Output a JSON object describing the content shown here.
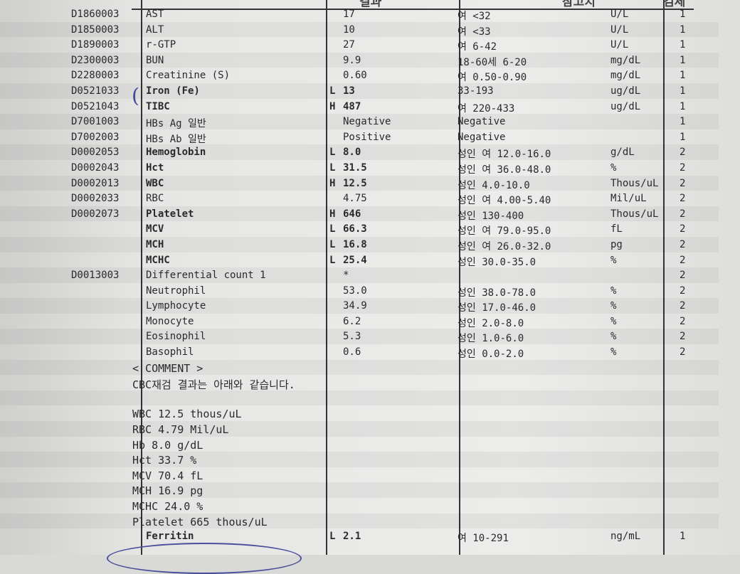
{
  "header": {
    "result": "결과",
    "reference": "참고치",
    "specimen": "검체"
  },
  "rows": [
    {
      "code": "D1860003",
      "name": "AST",
      "flag": "",
      "result": "17",
      "ref": "여 <32",
      "unit": "U/L",
      "spec": "1"
    },
    {
      "code": "D1850003",
      "name": "ALT",
      "flag": "",
      "result": "10",
      "ref": "여 <33",
      "unit": "U/L",
      "spec": "1"
    },
    {
      "code": "D1890003",
      "name": "r-GTP",
      "flag": "",
      "result": "27",
      "ref": "여  6-42",
      "unit": "U/L",
      "spec": "1"
    },
    {
      "code": "D2300003",
      "name": "BUN",
      "flag": "",
      "result": "9.9",
      "ref": "18-60세 6-20",
      "unit": "mg/dL",
      "spec": "1"
    },
    {
      "code": "D2280003",
      "name": "Creatinine (S)",
      "flag": "",
      "result": "0.60",
      "ref": "여 0.50-0.90",
      "unit": "mg/dL",
      "spec": "1"
    },
    {
      "code": "D0521033",
      "name": "Iron (Fe)",
      "flag": "L",
      "result": "13",
      "ref": "33-193",
      "unit": "ug/dL",
      "spec": "1",
      "bold": true
    },
    {
      "code": "D0521043",
      "name": "TIBC",
      "flag": "H",
      "result": "487",
      "ref": "여 220-433",
      "unit": "ug/dL",
      "spec": "1",
      "bold": true
    },
    {
      "code": "D7001003",
      "name": "HBs Ag 일반",
      "flag": "",
      "result": "Negative",
      "ref": "Negative",
      "unit": "",
      "spec": "1"
    },
    {
      "code": "D7002003",
      "name": "HBs Ab 일반",
      "flag": "",
      "result": "Positive",
      "ref": "Negative",
      "unit": "",
      "spec": "1"
    },
    {
      "code": "D0002053",
      "name": "Hemoglobin",
      "flag": "L",
      "result": "8.0",
      "ref": "성인 여 12.0-16.0",
      "unit": "g/dL",
      "spec": "2",
      "bold": true
    },
    {
      "code": "D0002043",
      "name": "Hct",
      "flag": "L",
      "result": "31.5",
      "ref": "성인 여 36.0-48.0",
      "unit": "%",
      "spec": "2",
      "bold": true
    },
    {
      "code": "D0002013",
      "name": "WBC",
      "flag": "H",
      "result": "12.5",
      "ref": "성인 4.0-10.0",
      "unit": "Thous/uL",
      "spec": "2",
      "bold": true
    },
    {
      "code": "D0002033",
      "name": "RBC",
      "flag": "",
      "result": "4.75",
      "ref": "성인 여 4.00-5.40",
      "unit": "Mil/uL",
      "spec": "2"
    },
    {
      "code": "D0002073",
      "name": "Platelet",
      "flag": "H",
      "result": "646",
      "ref": "성인 130-400",
      "unit": "Thous/uL",
      "spec": "2",
      "bold": true
    },
    {
      "code": "",
      "name": "MCV",
      "flag": "L",
      "result": "66.3",
      "ref": "성인 여 79.0-95.0",
      "unit": "fL",
      "spec": "2",
      "bold": true
    },
    {
      "code": "",
      "name": "MCH",
      "flag": "L",
      "result": "16.8",
      "ref": "성인 여 26.0-32.0",
      "unit": "pg",
      "spec": "2",
      "bold": true
    },
    {
      "code": "",
      "name": "MCHC",
      "flag": "L",
      "result": "25.4",
      "ref": "성인 30.0-35.0",
      "unit": "%",
      "spec": "2",
      "bold": true
    },
    {
      "code": "D0013003",
      "name": "Differential count 1",
      "flag": "",
      "result": "*",
      "ref": "",
      "unit": "",
      "spec": "2"
    },
    {
      "code": "",
      "name": "Neutrophil",
      "flag": "",
      "result": "53.0",
      "ref": "성인 38.0-78.0",
      "unit": "%",
      "spec": "2"
    },
    {
      "code": "",
      "name": "Lymphocyte",
      "flag": "",
      "result": "34.9",
      "ref": "성인 17.0-46.0",
      "unit": "%",
      "spec": "2"
    },
    {
      "code": "",
      "name": "Monocyte",
      "flag": "",
      "result": "6.2",
      "ref": "성인 2.0-8.0",
      "unit": "%",
      "spec": "2"
    },
    {
      "code": "",
      "name": "Eosinophil",
      "flag": "",
      "result": "5.3",
      "ref": "성인 1.0-6.0",
      "unit": "%",
      "spec": "2"
    },
    {
      "code": "",
      "name": "Basophil",
      "flag": "",
      "result": "0.6",
      "ref": "성인 0.0-2.0",
      "unit": "%",
      "spec": "2"
    }
  ],
  "comment": [
    "< COMMENT >",
    "CBC재검 결과는 아래와 같습니다.",
    "",
    "WBC 12.5 thous/uL",
    "RBC 4.79 Mil/uL",
    "Hb 8.0 g/dL",
    "Hct 33.7 %",
    "MCV 70.4 fL",
    "MCH 16.9 pg",
    "MCHC 24.0 %",
    "Platelet 665 thous/uL"
  ],
  "last_row": {
    "name": "Ferritin",
    "flag": "L",
    "result": "2.1",
    "ref": "여 10-291",
    "unit": "ng/mL",
    "spec": "1"
  }
}
